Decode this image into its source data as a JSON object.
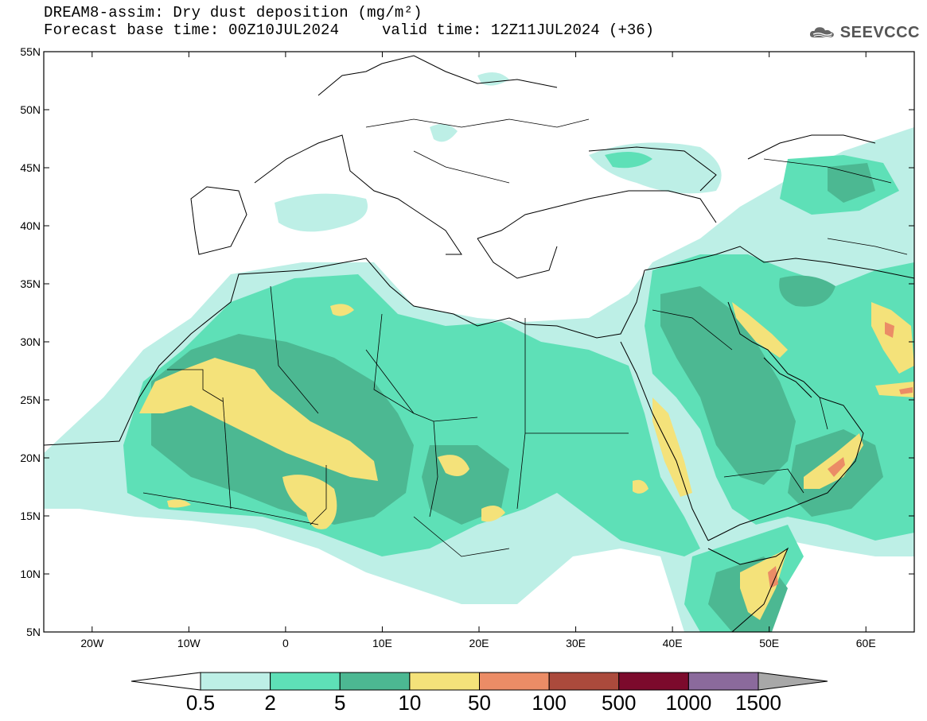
{
  "header": {
    "title": "DREAM8-assim: Dry dust deposition (mg/m²)",
    "base_time": "Forecast base time: 00Z10JUL2024",
    "valid_time": "valid time: 12Z11JUL2024 (+36)"
  },
  "logo": {
    "text": "SEEVCCC",
    "icon": "cloud-icon"
  },
  "map": {
    "lon_range": [
      -25,
      65
    ],
    "lat_range": [
      5,
      55
    ],
    "lat_ticks": [
      {
        "value": 55,
        "label": "55N"
      },
      {
        "value": 50,
        "label": "50N"
      },
      {
        "value": 45,
        "label": "45N"
      },
      {
        "value": 40,
        "label": "40N"
      },
      {
        "value": 35,
        "label": "35N"
      },
      {
        "value": 30,
        "label": "30N"
      },
      {
        "value": 25,
        "label": "25N"
      },
      {
        "value": 20,
        "label": "20N"
      },
      {
        "value": 15,
        "label": "15N"
      },
      {
        "value": 10,
        "label": "10N"
      },
      {
        "value": 5,
        "label": "5N"
      }
    ],
    "lon_ticks": [
      {
        "value": -20,
        "label": "20W"
      },
      {
        "value": -10,
        "label": "10W"
      },
      {
        "value": 0,
        "label": "0"
      },
      {
        "value": 10,
        "label": "10E"
      },
      {
        "value": 20,
        "label": "20E"
      },
      {
        "value": 30,
        "label": "30E"
      },
      {
        "value": 40,
        "label": "40E"
      },
      {
        "value": 50,
        "label": "50E"
      },
      {
        "value": 60,
        "label": "60E"
      }
    ]
  },
  "colorbar": {
    "labels": [
      "0.5",
      "2",
      "5",
      "10",
      "50",
      "100",
      "500",
      "1000",
      "1500"
    ],
    "colors": [
      "#bdefe6",
      "#5ee0b7",
      "#4cb892",
      "#f4e27a",
      "#eb8c66",
      "#ab4a3c",
      "#7c0a2c",
      "#8b6a9c"
    ],
    "under_color": "#ffffff",
    "over_color": "#a8a8a8"
  }
}
